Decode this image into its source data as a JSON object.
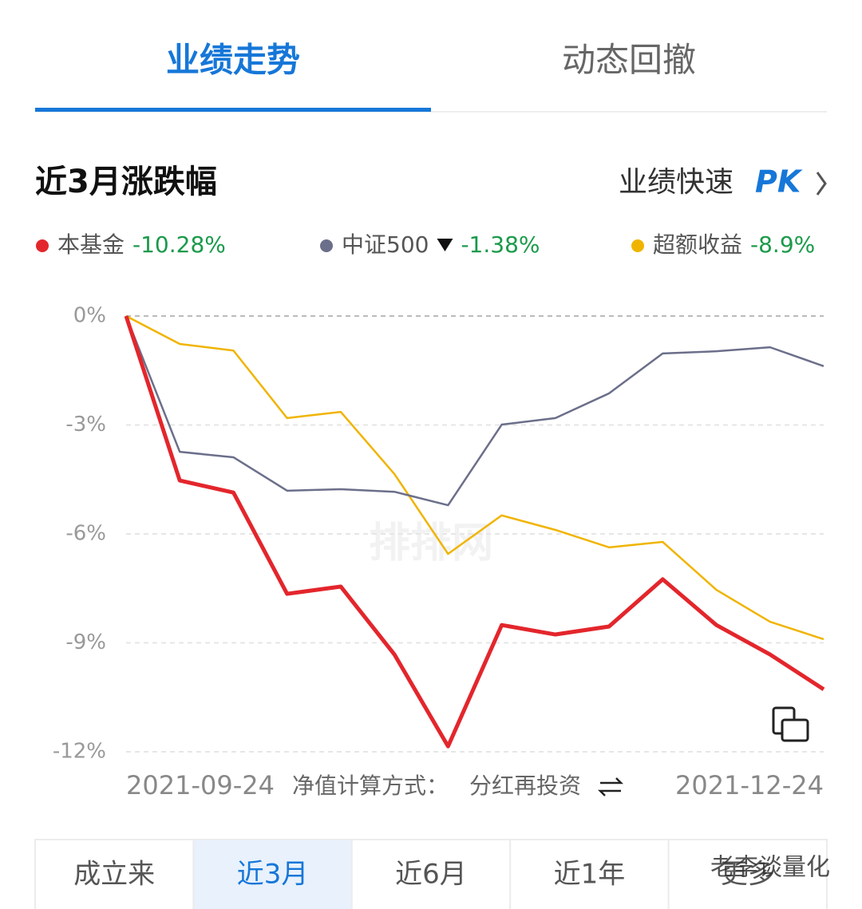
{
  "tabs": [
    {
      "label": "业绩走势",
      "active": true
    },
    {
      "label": "动态回撤"
    }
  ],
  "section": {
    "title": "近3月涨跌幅",
    "pk_label": "业绩快速",
    "pk": "PK"
  },
  "chart_data": {
    "type": "line",
    "categories": [
      "2021-09-24",
      null,
      null,
      null,
      null,
      null,
      null,
      null,
      null,
      null,
      null,
      null,
      null,
      "2021-12-24"
    ],
    "series": [
      {
        "name": "本基金",
        "color": "#e3262c",
        "summary": "-10.28%",
        "values": [
          0,
          -4.53,
          -4.86,
          -7.65,
          -7.45,
          -9.32,
          -11.85,
          -8.51,
          -8.77,
          -8.55,
          -7.25,
          -8.51,
          -9.32,
          -10.28
        ]
      },
      {
        "name": "中证500",
        "color": "#6b6f8a",
        "summary": "-1.38%",
        "values": [
          0,
          -3.74,
          -3.89,
          -4.81,
          -4.77,
          -4.84,
          -5.21,
          -2.99,
          -2.81,
          -2.13,
          -1.03,
          -0.97,
          -0.86,
          -1.38
        ]
      },
      {
        "name": "超额收益",
        "color": "#f0b400",
        "summary": "-8.9%",
        "values": [
          0,
          -0.77,
          -0.95,
          -2.81,
          -2.64,
          -4.35,
          -6.55,
          -5.49,
          -5.89,
          -6.37,
          -6.22,
          -7.54,
          -8.42,
          -8.9
        ]
      }
    ],
    "ylim": [
      -12,
      0
    ],
    "yticks": [
      {
        "value": 0,
        "label": "0%"
      },
      {
        "value": -3,
        "label": "-3%"
      },
      {
        "value": -6,
        "label": "-6%"
      },
      {
        "value": -9,
        "label": "-9%"
      },
      {
        "value": -12,
        "label": "-12%"
      }
    ],
    "grid": true,
    "watermark": "排排网"
  },
  "footer": {
    "method_label": "净值计算方式：",
    "method": "分红再投资"
  },
  "range_tabs": [
    {
      "label": "成立来"
    },
    {
      "label": "近3月",
      "active": true
    },
    {
      "label": "近6月"
    },
    {
      "label": "近1年"
    },
    {
      "label": "更多"
    }
  ],
  "watermark": "老李谈量化"
}
